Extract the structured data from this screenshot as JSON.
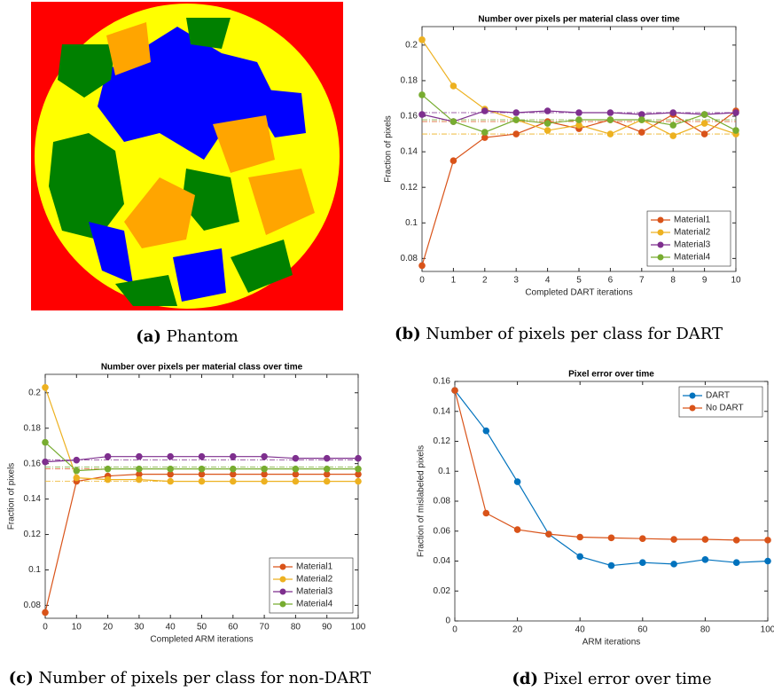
{
  "captions": [
    {
      "label": "(a)",
      "text": "Phantom"
    },
    {
      "label": "(b)",
      "text": "Number of pixels per class for DART"
    },
    {
      "label": "(c)",
      "text": "Number of pixels per class for non-DART"
    },
    {
      "label": "(d)",
      "text": "Pixel error over time"
    }
  ],
  "chart_data": [
    {
      "type": "line",
      "title": "Number over pixels per material class over time",
      "x_label": "Completed DART iterations",
      "y_label": "Fraction of pixels",
      "x": [
        0,
        1,
        2,
        3,
        4,
        5,
        6,
        7,
        8,
        9,
        10
      ],
      "xlim": [
        0,
        10
      ],
      "xticks": [
        0,
        1,
        2,
        3,
        4,
        5,
        6,
        7,
        8,
        9,
        10
      ],
      "ylim": [
        0.0727,
        0.2104
      ],
      "yticks": [
        0.08,
        0.1,
        0.12,
        0.14,
        0.16,
        0.18,
        0.2
      ],
      "legend": "southeast",
      "series": [
        {
          "name": "Material1",
          "color": "#d95319",
          "target": 0.157,
          "values": [
            0.076,
            0.135,
            0.148,
            0.15,
            0.157,
            0.153,
            0.158,
            0.151,
            0.161,
            0.15,
            0.163
          ]
        },
        {
          "name": "Material2",
          "color": "#edb120",
          "target": 0.15,
          "values": [
            0.203,
            0.177,
            0.164,
            0.158,
            0.152,
            0.155,
            0.15,
            0.158,
            0.149,
            0.156,
            0.15
          ]
        },
        {
          "name": "Material3",
          "color": "#7e2f8e",
          "target": 0.162,
          "values": [
            0.161,
            0.157,
            0.163,
            0.162,
            0.163,
            0.162,
            0.162,
            0.161,
            0.162,
            0.161,
            0.162
          ]
        },
        {
          "name": "Material4",
          "color": "#77ac30",
          "target": 0.158,
          "values": [
            0.172,
            0.157,
            0.151,
            0.158,
            0.156,
            0.158,
            0.158,
            0.158,
            0.155,
            0.161,
            0.152
          ]
        }
      ]
    },
    {
      "type": "line",
      "title": "Number over pixels per material class over time",
      "x_label": "Completed ARM iterations",
      "y_label": "Fraction of pixels",
      "x": [
        0,
        10,
        20,
        30,
        40,
        50,
        60,
        70,
        80,
        90,
        100
      ],
      "xlim": [
        0,
        100
      ],
      "xticks": [
        0,
        10,
        20,
        30,
        40,
        50,
        60,
        70,
        80,
        90,
        100
      ],
      "ylim": [
        0.0727,
        0.2104
      ],
      "yticks": [
        0.08,
        0.1,
        0.12,
        0.14,
        0.16,
        0.18,
        0.2
      ],
      "legend": "southeast",
      "series": [
        {
          "name": "Material1",
          "color": "#d95319",
          "target": 0.157,
          "values": [
            0.076,
            0.15,
            0.153,
            0.154,
            0.154,
            0.154,
            0.154,
            0.154,
            0.154,
            0.154,
            0.154
          ]
        },
        {
          "name": "Material2",
          "color": "#edb120",
          "target": 0.15,
          "values": [
            0.203,
            0.152,
            0.151,
            0.151,
            0.15,
            0.15,
            0.15,
            0.15,
            0.15,
            0.15,
            0.15
          ]
        },
        {
          "name": "Material3",
          "color": "#7e2f8e",
          "target": 0.162,
          "values": [
            0.161,
            0.162,
            0.164,
            0.164,
            0.164,
            0.164,
            0.164,
            0.164,
            0.163,
            0.163,
            0.163
          ]
        },
        {
          "name": "Material4",
          "color": "#77ac30",
          "target": 0.158,
          "values": [
            0.172,
            0.156,
            0.157,
            0.157,
            0.157,
            0.157,
            0.157,
            0.157,
            0.157,
            0.157,
            0.157
          ]
        }
      ]
    },
    {
      "type": "line",
      "title": "Pixel error over time",
      "x_label": "ARM iterations",
      "y_label": "Fraction of mislabeled pixels",
      "x": [
        0,
        10,
        20,
        30,
        40,
        50,
        60,
        70,
        80,
        90,
        100
      ],
      "xlim": [
        0,
        100
      ],
      "xticks": [
        0,
        20,
        40,
        60,
        80,
        100
      ],
      "ylim": [
        0,
        0.16
      ],
      "yticks": [
        0,
        0.02,
        0.04,
        0.06,
        0.08,
        0.1,
        0.12,
        0.14,
        0.16
      ],
      "legend": "northeast",
      "series": [
        {
          "name": "DART",
          "color": "#0072bd",
          "values": [
            0.154,
            0.127,
            0.093,
            0.058,
            0.043,
            0.037,
            0.039,
            0.038,
            0.041,
            0.039,
            0.04
          ]
        },
        {
          "name": "No DART",
          "color": "#d95319",
          "values": [
            0.154,
            0.072,
            0.061,
            0.058,
            0.056,
            0.0555,
            0.055,
            0.0545,
            0.0545,
            0.054,
            0.054
          ]
        }
      ]
    }
  ]
}
